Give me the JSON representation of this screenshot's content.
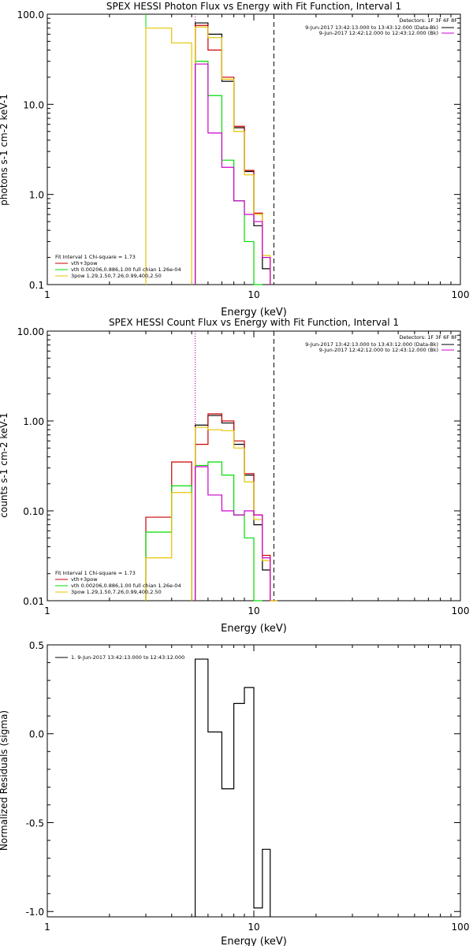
{
  "chart_data": [
    {
      "type": "line",
      "title": "SPEX HESSI Photon Flux vs Energy with Fit Function, Interval 1",
      "xlabel": "Energy (keV)",
      "ylabel": "photons s-1 cm-2 keV-1",
      "xscale": "log",
      "yscale": "log",
      "xlim": [
        1,
        100
      ],
      "ylim": [
        0.1,
        100
      ],
      "x_ticks": [
        "1",
        "10",
        "100"
      ],
      "y_ticks": [
        "0.1",
        "1.0",
        "10.0",
        "100.0"
      ],
      "edges": [
        3,
        4,
        5,
        5.2,
        6,
        7,
        8,
        9,
        10,
        11,
        12,
        13
      ],
      "series": [
        {
          "name": "",
          "color": "#000000",
          "values": [
            null,
            null,
            null,
            80,
            60,
            18,
            5.5,
            1.8,
            0.45,
            0.15,
            null
          ]
        },
        {
          "name": "vth+3pow",
          "color": "#cc0000",
          "values": [
            null,
            null,
            null,
            75,
            40,
            20,
            5.7,
            1.85,
            0.62,
            0.2,
            null
          ]
        },
        {
          "name": "vth 0.00206,0.886,1.00 full chian 1.26e-04",
          "color": "#00dd00",
          "values": [
            null,
            null,
            null,
            30,
            12.5,
            2.4,
            0.85,
            0.3,
            0.1,
            null,
            null
          ]
        },
        {
          "name": "3pow 1.29,1.50,7.26,0.99,400,2.50",
          "color": "#e6c400",
          "values": [
            70,
            48,
            null,
            72,
            55,
            19,
            5.0,
            1.65,
            0.6,
            0.21,
            null
          ]
        },
        {
          "name": "",
          "color": "#cc00cc",
          "values": [
            null,
            null,
            null,
            28,
            4.8,
            2.0,
            0.85,
            0.6,
            0.5,
            0.2,
            null
          ]
        }
      ],
      "vlines": [
        {
          "x": 3,
          "color": "#00dd00",
          "style": "solid"
        },
        {
          "x": 5.2,
          "color": "#00dd00",
          "style": "dotted"
        },
        {
          "x": 5.2,
          "color": "#cc00cc",
          "style": "dotted"
        },
        {
          "x": 12.5,
          "color": "#000000",
          "style": "dashed"
        }
      ],
      "legend_tr": {
        "header": "Detectors: 1F 3F 6F 8F",
        "lines": [
          {
            "text": "9-Jun-2017 13:42:13.000 to 13:43:12.000 (Data-Bk)",
            "color": "#000000"
          },
          {
            "text": "9-Jun-2017 12:42:12.000 to 12:43:12.000 (Bk)",
            "color": "#cc00cc"
          }
        ]
      },
      "legend_bl": {
        "header": "Fit Interval 1   Chi-square = 1.73",
        "lines": [
          {
            "text": "vth+3pow",
            "color": "#cc0000"
          },
          {
            "text": "vth 0.00206,0.886,1.00 full chian 1.26e-04",
            "color": "#00dd00"
          },
          {
            "text": "3pow 1.29,1.50,7.26,0.99,400,2.50",
            "color": "#e6c400"
          }
        ]
      }
    },
    {
      "type": "line",
      "title": "SPEX HESSI Count Flux vs Energy with Fit Function, Interval 1",
      "xlabel": "Energy (keV)",
      "ylabel": "counts s-1 cm-2 keV-1",
      "xscale": "log",
      "yscale": "log",
      "xlim": [
        1,
        100
      ],
      "ylim": [
        0.01,
        10
      ],
      "x_ticks": [
        "1",
        "10",
        "100"
      ],
      "y_ticks": [
        "0.01",
        "0.10",
        "1.00",
        "10.00"
      ],
      "edges": [
        3,
        4,
        5,
        5.2,
        6,
        7,
        8,
        9,
        10,
        11,
        12,
        13
      ],
      "series": [
        {
          "name": "",
          "color": "#000000",
          "values": [
            null,
            null,
            null,
            0.9,
            1.15,
            0.95,
            0.55,
            0.25,
            0.07,
            0.022,
            null
          ]
        },
        {
          "name": "vth+3pow",
          "color": "#cc0000",
          "values": [
            0.085,
            0.35,
            null,
            0.55,
            1.2,
            1.0,
            0.6,
            0.26,
            0.09,
            0.032,
            0.01
          ]
        },
        {
          "name": "vth 0.00206,0.886,1.00 full chian 1.26e-04",
          "color": "#00dd00",
          "values": [
            0.058,
            0.19,
            null,
            0.32,
            0.35,
            0.25,
            0.09,
            0.05,
            0.01,
            null,
            null
          ]
        },
        {
          "name": "3pow 1.29,1.50,7.26,0.99,400,2.50",
          "color": "#e6c400",
          "values": [
            0.03,
            0.16,
            null,
            0.85,
            0.8,
            0.78,
            0.5,
            0.21,
            0.08,
            0.028,
            0.01
          ]
        },
        {
          "name": "",
          "color": "#cc00cc",
          "values": [
            null,
            null,
            null,
            0.31,
            0.15,
            0.1,
            0.09,
            0.1,
            0.09,
            0.03,
            null
          ]
        }
      ],
      "vlines": [
        {
          "x": 5.2,
          "color": "#000000",
          "style": "dotted"
        },
        {
          "x": 5.2,
          "color": "#cc00cc",
          "style": "dotted"
        },
        {
          "x": 12.5,
          "color": "#000000",
          "style": "dashed"
        }
      ],
      "legend_tr": {
        "header": "Detectors: 1F 3F 6F 8F",
        "lines": [
          {
            "text": "9-Jun-2017 13:42:13.000 to 13:43:12.000 (Data-Bk)",
            "color": "#000000"
          },
          {
            "text": "9-Jun-2017 12:42:12.000 to 12:43:12.000 (Bk)",
            "color": "#cc00cc"
          }
        ]
      },
      "legend_bl": {
        "header": "Fit Interval 1   Chi-square = 1.73",
        "lines": [
          {
            "text": "vth+3pow",
            "color": "#cc0000"
          },
          {
            "text": "vth 0.00206,0.886,1.00 full chian 1.26e-04",
            "color": "#00dd00"
          },
          {
            "text": "3pow 1.29,1.50,7.26,0.99,400,2.50",
            "color": "#e6c400"
          }
        ]
      }
    },
    {
      "type": "line",
      "title": "",
      "xlabel": "Energy (keV)",
      "ylabel": "Normalized Residuals (sigma)",
      "xscale": "log",
      "yscale": "linear",
      "xlim": [
        1,
        100
      ],
      "ylim": [
        -1.03,
        0.5
      ],
      "x_ticks": [
        "1",
        "10",
        "100"
      ],
      "y_ticks": [
        "-1.0",
        "-0.5",
        "0.0",
        "0.5"
      ],
      "y_tick_values": [
        -1.0,
        -0.5,
        0.0,
        0.5
      ],
      "edges": [
        5.2,
        6,
        7,
        8,
        9,
        10,
        11,
        12,
        13
      ],
      "series": [
        {
          "name": "1. 9-Jun-2017 13:42:13.000 to 12:43:12.000",
          "color": "#000000",
          "values": [
            0.42,
            0.01,
            -0.31,
            0.17,
            0.26,
            -0.98,
            -0.65,
            null
          ]
        }
      ],
      "legend_tl": {
        "lines": [
          {
            "text": "1.  9-Jun-2017 13:42:13.000 to 12:43:12.000",
            "color": "#000000"
          }
        ]
      }
    }
  ]
}
